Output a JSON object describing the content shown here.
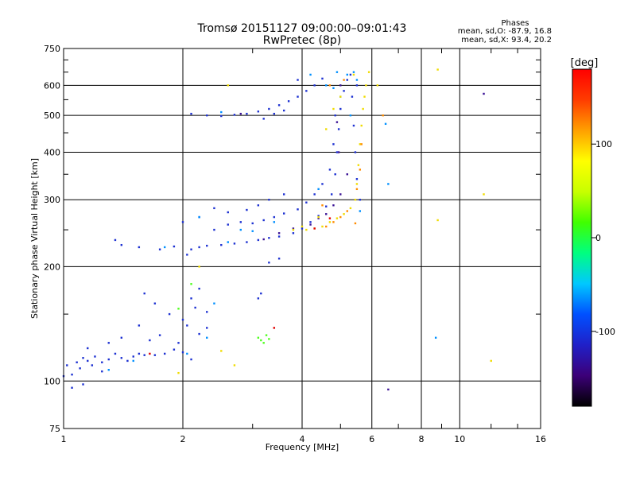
{
  "chart_data": {
    "type": "scatter",
    "title": "Tromsø 20151127 09:00:00–09:01:43",
    "subtitle": "RwPretec (8p)",
    "xlabel": "Frequency [MHz]",
    "ylabel": "Stationary phase Virtual Height [km]",
    "xscale": "log",
    "yscale": "log",
    "xlim": [
      1,
      16
    ],
    "ylim": [
      75,
      750
    ],
    "grid": true,
    "x_ticks": [
      1,
      2,
      4,
      6,
      8,
      10,
      16
    ],
    "x_tick_labels": [
      "1",
      "2",
      "4",
      "6",
      "8",
      "10",
      "16"
    ],
    "y_ticks": [
      75,
      100,
      200,
      300,
      400,
      500,
      600,
      750
    ],
    "y_tick_labels": [
      "75",
      "100",
      "200",
      "300",
      "400",
      "500",
      "600",
      "750"
    ],
    "phases": {
      "heading": "Phases",
      "o_line": "mean, sd,O: -87.9, 16.8",
      "x_line": "mean, sd,X:  93.4, 20.2"
    },
    "colorbar": {
      "label": "[deg]",
      "ticks": [
        100,
        0,
        -100
      ],
      "tick_labels": [
        "100",
        "0",
        "-100"
      ],
      "range": [
        -180,
        180
      ],
      "colors": [
        "#000000",
        "#3c0078",
        "#2020c8",
        "#0050ff",
        "#00c8ff",
        "#00ff80",
        "#40ff00",
        "#c8ff00",
        "#ffff00",
        "#ffa000",
        "#ff3c00",
        "#ff0000"
      ]
    },
    "series": [
      {
        "phase": -100,
        "color": "#1e32d2",
        "points": [
          [
            1.02,
            110
          ],
          [
            1.05,
            104
          ],
          [
            1.08,
            112
          ],
          [
            1.1,
            108
          ],
          [
            1.12,
            115
          ],
          [
            1.15,
            113
          ],
          [
            1.18,
            110
          ],
          [
            1.2,
            116
          ],
          [
            1.25,
            112
          ],
          [
            1.3,
            114
          ],
          [
            1.35,
            118
          ],
          [
            1.4,
            115
          ],
          [
            1.45,
            113
          ],
          [
            1.5,
            116
          ],
          [
            1.55,
            118
          ],
          [
            1.6,
            117
          ],
          [
            1.7,
            117
          ],
          [
            1.8,
            118
          ],
          [
            1.9,
            121
          ],
          [
            2.0,
            119
          ],
          [
            2.1,
            114
          ],
          [
            1.65,
            128
          ],
          [
            1.75,
            132
          ],
          [
            1.95,
            126
          ],
          [
            2.05,
            140
          ],
          [
            2.2,
            133
          ],
          [
            2.3,
            138
          ],
          [
            1.4,
            130
          ],
          [
            1.55,
            140
          ],
          [
            1.85,
            150
          ],
          [
            2.0,
            145
          ],
          [
            2.15,
            156
          ],
          [
            2.3,
            152
          ],
          [
            1.12,
            98
          ],
          [
            1.25,
            106
          ],
          [
            1.05,
            96
          ],
          [
            1.15,
            122
          ],
          [
            1.3,
            126
          ],
          [
            1.6,
            170
          ],
          [
            2.1,
            165
          ],
          [
            1.7,
            160
          ],
          [
            2.2,
            175
          ],
          [
            2.05,
            215
          ],
          [
            2.1,
            222
          ],
          [
            2.2,
            225
          ],
          [
            2.3,
            227
          ],
          [
            2.5,
            228
          ],
          [
            2.7,
            230
          ],
          [
            2.9,
            232
          ],
          [
            3.1,
            235
          ],
          [
            3.3,
            238
          ],
          [
            3.5,
            240
          ],
          [
            3.8,
            245
          ],
          [
            4.0,
            252
          ],
          [
            4.2,
            262
          ],
          [
            4.4,
            272
          ],
          [
            4.6,
            288
          ],
          [
            4.75,
            310
          ],
          [
            4.85,
            350
          ],
          [
            4.9,
            400
          ],
          [
            4.95,
            460
          ],
          [
            5.0,
            520
          ],
          [
            5.1,
            580
          ],
          [
            5.2,
            620
          ],
          [
            2.4,
            250
          ],
          [
            2.6,
            258
          ],
          [
            2.8,
            262
          ],
          [
            3.0,
            260
          ],
          [
            3.2,
            265
          ],
          [
            3.4,
            270
          ],
          [
            3.6,
            276
          ],
          [
            3.9,
            283
          ],
          [
            4.1,
            295
          ],
          [
            4.3,
            310
          ],
          [
            4.5,
            330
          ],
          [
            4.7,
            360
          ],
          [
            4.8,
            420
          ],
          [
            4.85,
            500
          ],
          [
            2.0,
            262
          ],
          [
            2.2,
            270
          ],
          [
            2.4,
            285
          ],
          [
            2.6,
            278
          ],
          [
            2.9,
            282
          ],
          [
            3.1,
            290
          ],
          [
            3.3,
            300
          ],
          [
            3.6,
            310
          ],
          [
            1.35,
            235
          ],
          [
            1.4,
            228
          ],
          [
            1.55,
            225
          ],
          [
            1.75,
            222
          ],
          [
            1.9,
            226
          ],
          [
            2.1,
            505
          ],
          [
            2.3,
            500
          ],
          [
            2.5,
            498
          ],
          [
            2.7,
            502
          ],
          [
            2.9,
            505
          ],
          [
            3.1,
            512
          ],
          [
            3.3,
            520
          ],
          [
            3.5,
            532
          ],
          [
            3.7,
            545
          ],
          [
            3.9,
            560
          ],
          [
            4.1,
            580
          ],
          [
            4.3,
            600
          ],
          [
            4.5,
            625
          ],
          [
            3.2,
            490
          ],
          [
            3.4,
            505
          ],
          [
            3.6,
            515
          ],
          [
            5.3,
            640
          ],
          [
            5.35,
            560
          ],
          [
            5.4,
            470
          ],
          [
            5.45,
            400
          ],
          [
            5.5,
            340
          ],
          [
            5.6,
            300
          ],
          [
            3.9,
            620
          ],
          [
            5.5,
            600
          ],
          [
            3.1,
            165
          ],
          [
            3.15,
            170
          ],
          [
            3.3,
            205
          ],
          [
            3.5,
            210
          ],
          [
            1.0,
            103
          ]
        ]
      },
      {
        "phase": -60,
        "color": "#0090ff",
        "points": [
          [
            1.3,
            107
          ],
          [
            1.5,
            113
          ],
          [
            2.3,
            130
          ],
          [
            2.05,
            118
          ],
          [
            2.6,
            232
          ],
          [
            3.0,
            248
          ],
          [
            3.4,
            262
          ],
          [
            4.6,
            600
          ],
          [
            4.8,
            590
          ],
          [
            5.2,
            640
          ],
          [
            5.4,
            650
          ],
          [
            5.5,
            620
          ],
          [
            5.3,
            500
          ],
          [
            2.5,
            510
          ],
          [
            2.8,
            250
          ],
          [
            2.2,
            270
          ],
          [
            1.8,
            225
          ],
          [
            4.4,
            320
          ],
          [
            5.6,
            280
          ],
          [
            6.5,
            475
          ],
          [
            8.7,
            130
          ],
          [
            6.6,
            330
          ],
          [
            5.0,
            560
          ],
          [
            2.4,
            160
          ],
          [
            4.2,
            640
          ],
          [
            4.9,
            650
          ]
        ]
      },
      {
        "phase": -130,
        "color": "#3c1496",
        "points": [
          [
            4.2,
            258
          ],
          [
            4.4,
            268
          ],
          [
            4.6,
            275
          ],
          [
            4.8,
            290
          ],
          [
            5.0,
            310
          ],
          [
            3.2,
            236
          ],
          [
            3.5,
            245
          ],
          [
            3.8,
            252
          ],
          [
            5.2,
            350
          ],
          [
            4.95,
            400
          ],
          [
            4.9,
            480
          ],
          [
            2.8,
            505
          ],
          [
            5.0,
            600
          ],
          [
            6.6,
            95
          ],
          [
            11.5,
            570
          ]
        ]
      },
      {
        "phase": 100,
        "color": "#f0dc00",
        "points": [
          [
            4.1,
            250
          ],
          [
            4.3,
            252
          ],
          [
            4.5,
            255
          ],
          [
            4.7,
            262
          ],
          [
            4.9,
            268
          ],
          [
            5.1,
            275
          ],
          [
            5.3,
            285
          ],
          [
            5.45,
            300
          ],
          [
            5.5,
            330
          ],
          [
            5.55,
            370
          ],
          [
            5.6,
            420
          ],
          [
            5.65,
            470
          ],
          [
            5.7,
            520
          ],
          [
            5.75,
            560
          ],
          [
            5.8,
            600
          ],
          [
            5.4,
            640
          ],
          [
            5.0,
            560
          ],
          [
            4.8,
            520
          ],
          [
            4.6,
            460
          ],
          [
            4.4,
            270
          ],
          [
            4.0,
            255
          ],
          [
            3.8,
            250
          ],
          [
            2.2,
            200
          ],
          [
            2.5,
            120
          ],
          [
            2.7,
            110
          ],
          [
            1.95,
            105
          ],
          [
            6.2,
            600
          ],
          [
            8.8,
            660
          ],
          [
            8.8,
            265
          ],
          [
            11.5,
            310
          ],
          [
            12.0,
            113
          ],
          [
            2.6,
            600
          ],
          [
            5.9,
            650
          ]
        ]
      },
      {
        "phase": 140,
        "color": "#ff8c00",
        "points": [
          [
            4.6,
            255
          ],
          [
            4.8,
            262
          ],
          [
            5.0,
            270
          ],
          [
            5.2,
            280
          ],
          [
            5.5,
            320
          ],
          [
            5.6,
            360
          ],
          [
            5.65,
            420
          ],
          [
            4.7,
            600
          ],
          [
            5.1,
            620
          ],
          [
            4.5,
            290
          ],
          [
            5.45,
            260
          ],
          [
            6.4,
            500
          ]
        ]
      },
      {
        "phase": 40,
        "color": "#50ff20",
        "points": [
          [
            3.1,
            130
          ],
          [
            3.15,
            128
          ],
          [
            3.2,
            126
          ],
          [
            3.25,
            132
          ],
          [
            3.3,
            129
          ],
          [
            1.95,
            155
          ],
          [
            2.1,
            180
          ]
        ]
      },
      {
        "phase": 175,
        "color": "#e00000",
        "points": [
          [
            1.65,
            118
          ],
          [
            4.3,
            252
          ],
          [
            4.7,
            268
          ],
          [
            3.4,
            138
          ]
        ]
      }
    ]
  }
}
